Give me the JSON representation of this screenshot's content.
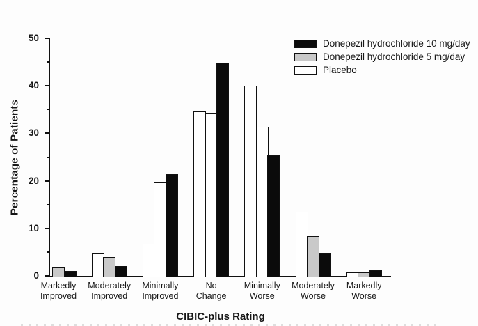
{
  "chart_data": {
    "type": "bar",
    "title": "",
    "xlabel": "CIBIC-plus Rating",
    "ylabel": "Percentage of Patients",
    "ylim": [
      0,
      50
    ],
    "ytick_major_step": 10,
    "ytick_minor_step": 5,
    "ytick_labels": [
      "0",
      "10",
      "20",
      "30",
      "40",
      "50"
    ],
    "grid": false,
    "legend_position": "top-right",
    "categories": [
      "Markedly Improved",
      "Moderately Improved",
      "Minimally Improved",
      "No Change",
      "Minimally Worse",
      "Moderately Worse",
      "Markedly Worse"
    ],
    "bar_order_left_to_right": [
      "Placebo",
      "Donepezil hydrochloride 5 mg/day",
      "Donepezil hydrochloride 10 mg/day"
    ],
    "series": [
      {
        "name": "Donepezil hydrochloride 10 mg/day",
        "color": "#0b0b0b",
        "values": [
          1.0,
          2.0,
          21.4,
          44.9,
          25.3,
          4.9,
          1.2
        ]
      },
      {
        "name": "Donepezil hydrochloride 5 mg/day",
        "color": "#c9c9c9",
        "values": [
          1.8,
          3.9,
          19.8,
          34.3,
          31.4,
          8.4,
          0.7
        ],
        "bar_colors": [
          "#c9c9c9",
          "#c9c9c9",
          "#ffffff",
          "#ffffff",
          "#ffffff",
          "#c9c9c9",
          "#c9c9c9"
        ]
      },
      {
        "name": "Placebo",
        "color": "#ffffff",
        "values": [
          0,
          4.8,
          6.8,
          34.6,
          40.0,
          13.5,
          0.7
        ]
      }
    ],
    "bar_border_color": "#111111",
    "axis_color": "#111111"
  }
}
